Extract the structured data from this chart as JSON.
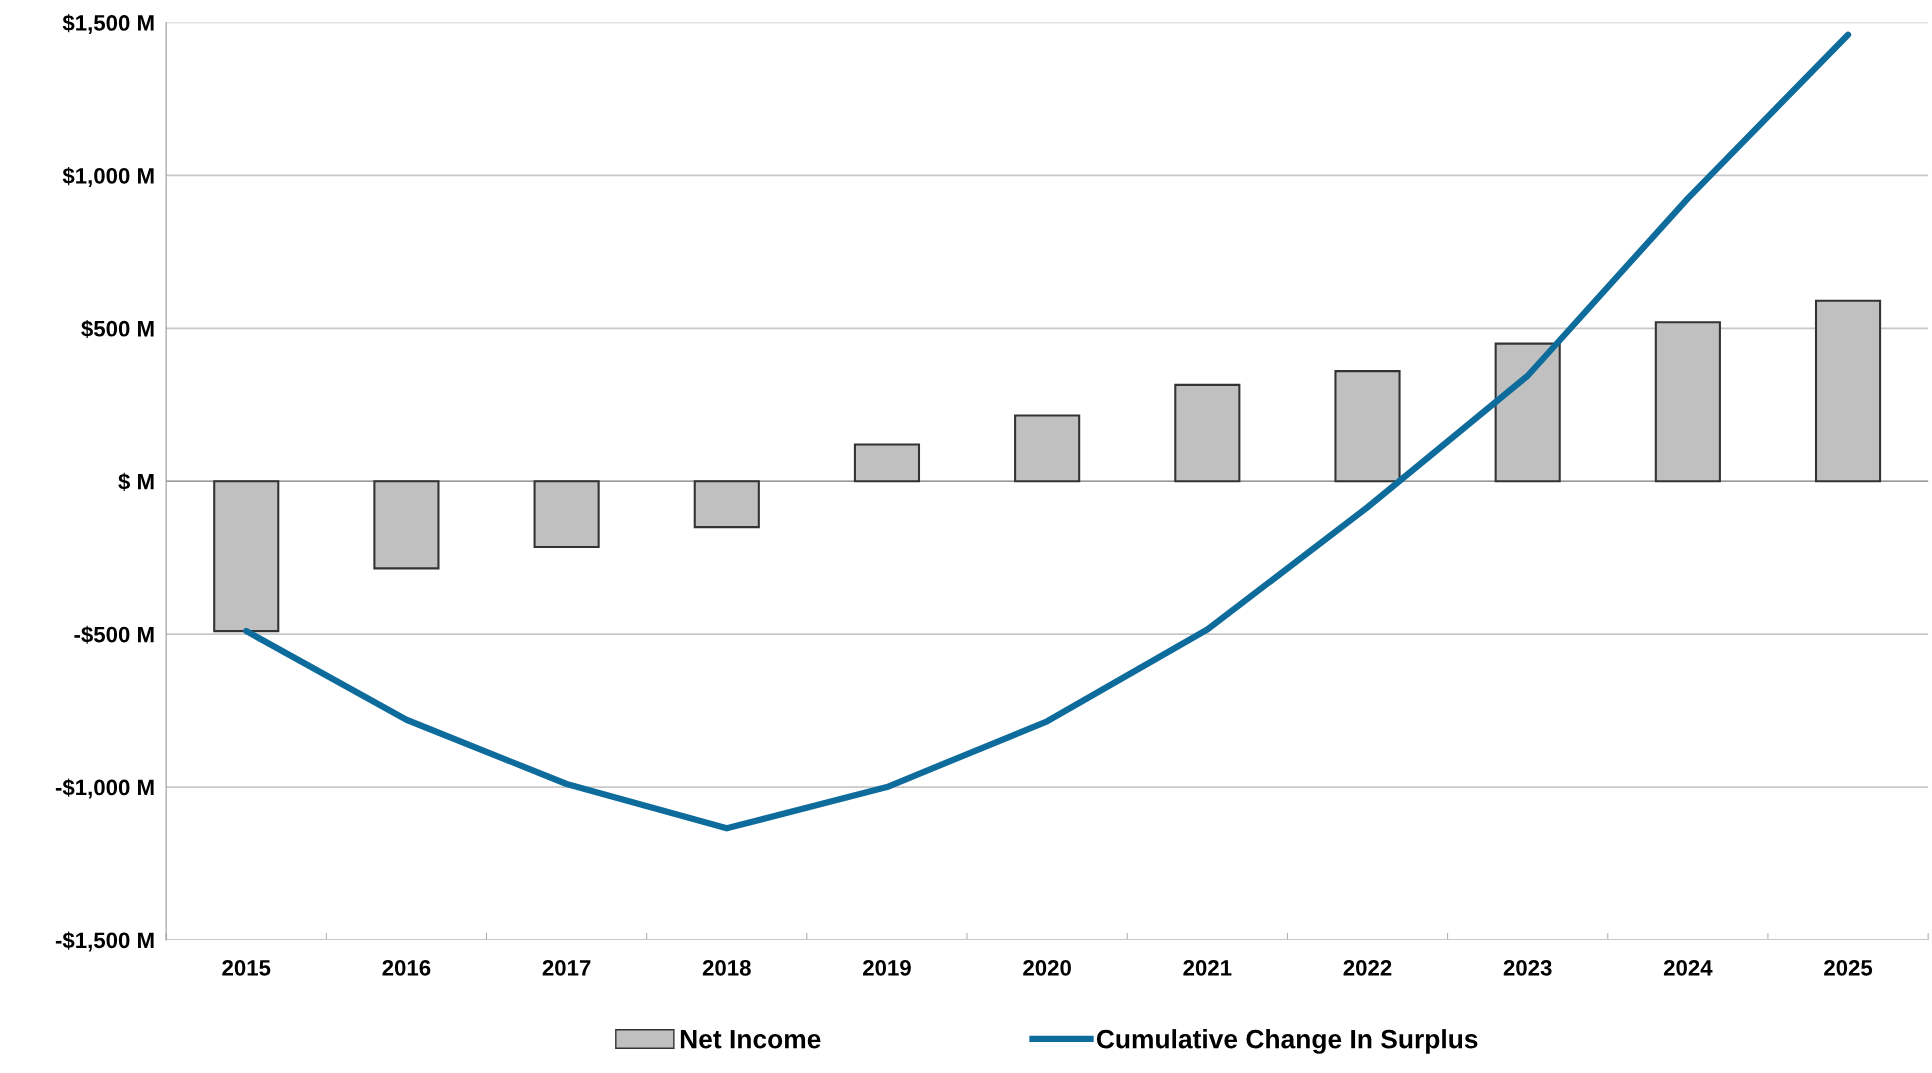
{
  "chart_data": {
    "type": "bar",
    "categories": [
      "2015",
      "2016",
      "2017",
      "2018",
      "2019",
      "2020",
      "2021",
      "2022",
      "2023",
      "2024",
      "2025"
    ],
    "series": [
      {
        "name": "Net Income",
        "color": "#c0c0c0",
        "values": [
          -490,
          -285,
          -215,
          -150,
          120,
          215,
          315,
          360,
          450,
          520,
          590
        ]
      },
      {
        "name": "Cumulative Change In Surplus",
        "type": "line",
        "color": "#0e6c9c",
        "values": [
          -490,
          -780,
          -990,
          -1135,
          -1000,
          -785,
          -485,
          -85,
          345,
          925,
          1460
        ]
      }
    ],
    "ylim": [
      -1500,
      1500
    ],
    "yticks": [
      {
        "value": -1500,
        "label": "-$1,500 M"
      },
      {
        "value": -1000,
        "label": "-$1,000 M"
      },
      {
        "value": -500,
        "label": "-$500 M"
      },
      {
        "value": 0,
        "label": "$ M"
      },
      {
        "value": 500,
        "label": "$500 M"
      },
      {
        "value": 1000,
        "label": "$1,000 M"
      },
      {
        "value": 1500,
        "label": "$1,500 M"
      }
    ],
    "grid": "y",
    "legend": "bottom",
    "marker": "none",
    "line_style": "solid"
  }
}
